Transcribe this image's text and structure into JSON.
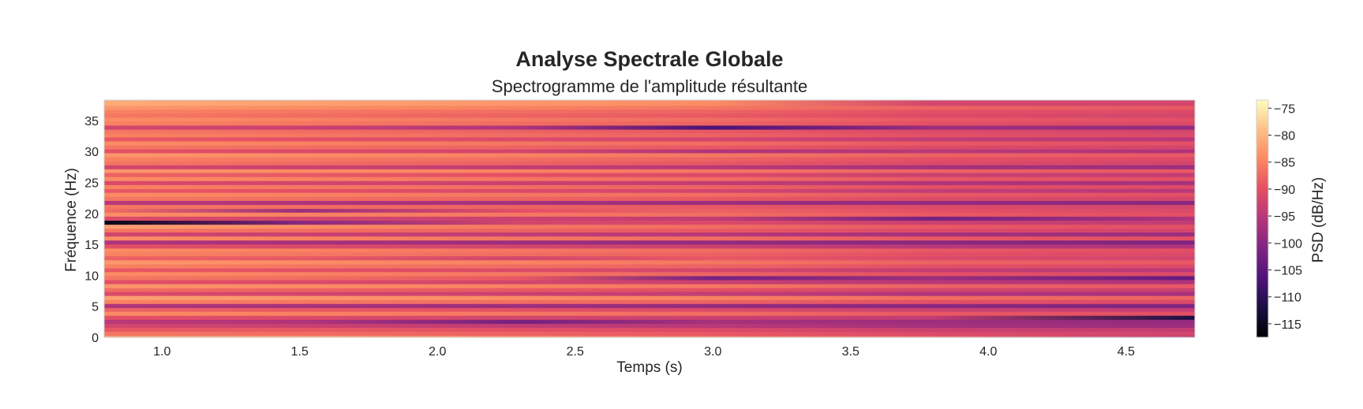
{
  "chart_data": {
    "type": "heatmap",
    "title": "Analyse Spectrale Globale",
    "subtitle": "Spectrogramme de l'amplitude résultante",
    "xlabel": "Temps (s)",
    "ylabel": "Fréquence (Hz)",
    "colorbar_label": "PSD (dB/Hz)",
    "colormap": "magma",
    "xlim": [
      0.79,
      4.75
    ],
    "ylim": [
      0,
      38.3
    ],
    "clim": [
      -117.5,
      -73.5
    ],
    "x_ticks": [
      1.0,
      1.5,
      2.0,
      2.5,
      3.0,
      3.5,
      4.0,
      4.5
    ],
    "x_tick_labels": [
      "1.0",
      "1.5",
      "2.0",
      "2.5",
      "3.0",
      "3.5",
      "4.0",
      "4.5"
    ],
    "y_ticks": [
      0,
      5,
      10,
      15,
      20,
      25,
      30,
      35
    ],
    "y_tick_labels": [
      "0",
      "5",
      "10",
      "15",
      "20",
      "25",
      "30",
      "35"
    ],
    "colorbar_ticks": [
      -75,
      -80,
      -85,
      -90,
      -95,
      -100,
      -105,
      -110,
      -115
    ],
    "colorbar_tick_labels": [
      "−75",
      "−80",
      "−85",
      "−90",
      "−95",
      "−100",
      "−105",
      "−110",
      "−115"
    ],
    "time_samples": [
      0.79,
      1.5,
      2.3,
      3.0,
      3.8,
      4.75
    ],
    "frequency_bins": [
      0.0,
      0.6,
      1.3,
      1.9,
      2.6,
      3.2,
      3.9,
      4.5,
      5.1,
      5.8,
      6.4,
      7.1,
      7.7,
      8.3,
      9.0,
      9.6,
      10.3,
      10.9,
      11.5,
      12.2,
      12.8,
      13.5,
      14.1,
      14.7,
      15.4,
      16.0,
      16.7,
      17.3,
      17.9,
      18.6,
      19.2,
      19.9,
      20.5,
      21.1,
      21.8,
      22.4,
      23.1,
      23.7,
      24.3,
      25.0,
      25.6,
      26.3,
      26.9,
      27.5,
      28.2,
      28.8,
      29.5,
      30.1,
      30.7,
      31.4,
      32.0,
      32.7,
      33.3,
      33.9,
      34.6,
      35.2,
      35.9,
      36.5,
      37.1,
      37.8
    ],
    "psd_values": [
      [
        -82,
        -86,
        -89,
        -92,
        -95,
        -90,
        -84,
        -88,
        -96,
        -85,
        -82,
        -91,
        -87,
        -83,
        -90,
        -86,
        -84,
        -89,
        -85,
        -83,
        -88,
        -85,
        -84,
        -90,
        -96,
        -84,
        -92,
        -86,
        -82,
        -116,
        -91,
        -84,
        -87,
        -86,
        -95,
        -86,
        -84,
        -89,
        -85,
        -91,
        -84,
        -88,
        -83,
        -92,
        -86,
        -85,
        -83,
        -90,
        -86,
        -84,
        -89,
        -85,
        -86,
        -92,
        -85,
        -84,
        -86,
        -85,
        -83,
        -81
      ],
      [
        -82,
        -87,
        -89,
        -93,
        -96,
        -91,
        -85,
        -89,
        -97,
        -86,
        -83,
        -92,
        -88,
        -84,
        -91,
        -87,
        -85,
        -90,
        -86,
        -84,
        -89,
        -86,
        -85,
        -91,
        -97,
        -85,
        -93,
        -87,
        -84,
        -100,
        -92,
        -85,
        -98,
        -87,
        -96,
        -87,
        -85,
        -90,
        -86,
        -92,
        -85,
        -89,
        -84,
        -93,
        -87,
        -86,
        -84,
        -91,
        -87,
        -85,
        -90,
        -86,
        -87,
        -93,
        -86,
        -85,
        -87,
        -86,
        -84,
        -82
      ],
      [
        -84,
        -88,
        -90,
        -94,
        -102,
        -92,
        -86,
        -90,
        -98,
        -87,
        -84,
        -93,
        -89,
        -85,
        -92,
        -89,
        -86,
        -91,
        -87,
        -85,
        -92,
        -87,
        -86,
        -92,
        -98,
        -86,
        -94,
        -88,
        -86,
        -92,
        -93,
        -86,
        -90,
        -88,
        -97,
        -88,
        -86,
        -91,
        -87,
        -93,
        -86,
        -90,
        -85,
        -94,
        -88,
        -87,
        -85,
        -92,
        -88,
        -86,
        -91,
        -87,
        -88,
        -96,
        -87,
        -86,
        -88,
        -87,
        -85,
        -83
      ],
      [
        -86,
        -89,
        -91,
        -95,
        -97,
        -93,
        -87,
        -91,
        -99,
        -88,
        -85,
        -94,
        -90,
        -86,
        -93,
        -102,
        -88,
        -92,
        -88,
        -86,
        -89,
        -88,
        -87,
        -93,
        -99,
        -87,
        -95,
        -89,
        -87,
        -91,
        -94,
        -87,
        -88,
        -89,
        -98,
        -89,
        -87,
        -92,
        -88,
        -94,
        -87,
        -91,
        -86,
        -95,
        -89,
        -88,
        -86,
        -96,
        -89,
        -87,
        -92,
        -88,
        -89,
        -107,
        -88,
        -87,
        -89,
        -88,
        -86,
        -84
      ],
      [
        -88,
        -91,
        -93,
        -97,
        -98,
        -94,
        -89,
        -93,
        -100,
        -90,
        -87,
        -96,
        -92,
        -88,
        -95,
        -98,
        -90,
        -94,
        -90,
        -88,
        -91,
        -90,
        -89,
        -95,
        -100,
        -89,
        -97,
        -91,
        -89,
        -93,
        -102,
        -89,
        -90,
        -91,
        -99,
        -91,
        -89,
        -94,
        -90,
        -96,
        -89,
        -93,
        -88,
        -97,
        -91,
        -90,
        -88,
        -95,
        -91,
        -89,
        -94,
        -90,
        -91,
        -98,
        -90,
        -89,
        -91,
        -90,
        -88,
        -92
      ],
      [
        -95,
        -92,
        -94,
        -98,
        -99,
        -112,
        -90,
        -94,
        -101,
        -91,
        -88,
        -97,
        -93,
        -89,
        -96,
        -104,
        -91,
        -95,
        -91,
        -89,
        -92,
        -91,
        -90,
        -96,
        -101,
        -90,
        -98,
        -92,
        -90,
        -94,
        -96,
        -90,
        -91,
        -92,
        -100,
        -92,
        -90,
        -95,
        -91,
        -97,
        -90,
        -94,
        -89,
        -98,
        -92,
        -91,
        -89,
        -96,
        -92,
        -90,
        -95,
        -91,
        -92,
        -99,
        -91,
        -90,
        -92,
        -91,
        -89,
        -92
      ]
    ]
  }
}
